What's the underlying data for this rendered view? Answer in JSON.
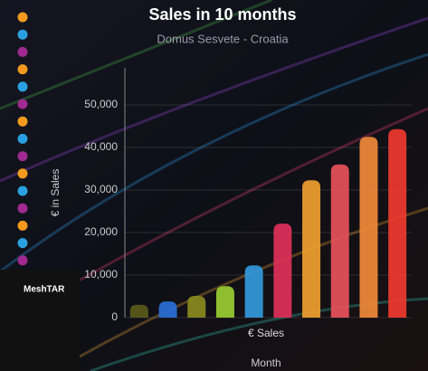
{
  "chart_data": {
    "type": "bar",
    "title": "Sales in 10 months",
    "subtitle": "Domus Sesvete - Croatia",
    "y_label": "€ in Sales",
    "x_label": "Month",
    "categories": [
      null,
      null,
      null,
      null,
      null,
      null,
      null,
      null,
      null,
      null
    ],
    "series": [
      {
        "name": "€ Sales",
        "values": [
          3000,
          3800,
          5100,
          7400,
          12300,
          22100,
          32300,
          36000,
          42500,
          44300
        ],
        "colors": [
          "#5a5a1a",
          "#2a6fd6",
          "#8a8a20",
          "#9acd32",
          "#3399dd",
          "#e0305a",
          "#f0a030",
          "#e8505a",
          "#f08a3a",
          "#f03a30"
        ]
      }
    ],
    "ylim": [
      0,
      50000
    ],
    "yticks": [
      0,
      {
        "value": 10000,
        "label": "10,000"
      },
      {
        "value": 20000,
        "label": "20,000"
      },
      {
        "value": 30000,
        "label": "30,000"
      },
      {
        "value": 40000,
        "label": "40,000"
      },
      {
        "value": 50000,
        "label": "50,000"
      }
    ],
    "grid": true
  },
  "logo": "MeshTAR"
}
